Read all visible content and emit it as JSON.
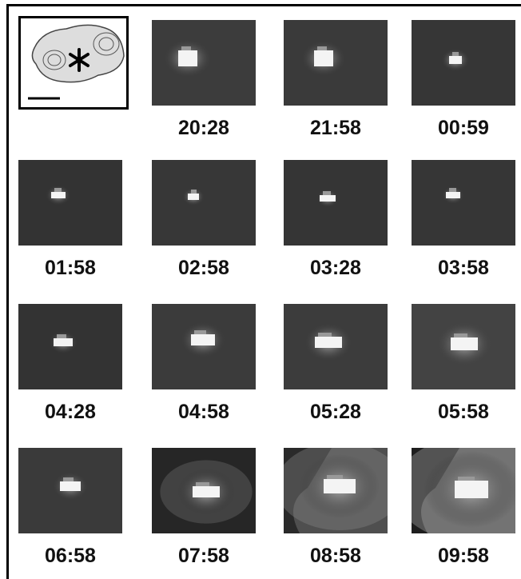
{
  "panels": [
    {
      "label": "20:28"
    },
    {
      "label": "21:58"
    },
    {
      "label": "00:59"
    },
    {
      "label": "01:58"
    },
    {
      "label": "02:58"
    },
    {
      "label": "03:28"
    },
    {
      "label": "03:58"
    },
    {
      "label": "04:28"
    },
    {
      "label": "04:58"
    },
    {
      "label": "05:28"
    },
    {
      "label": "05:58"
    },
    {
      "label": "06:58"
    },
    {
      "label": "07:58"
    },
    {
      "label": "08:58"
    },
    {
      "label": "09:58"
    }
  ]
}
